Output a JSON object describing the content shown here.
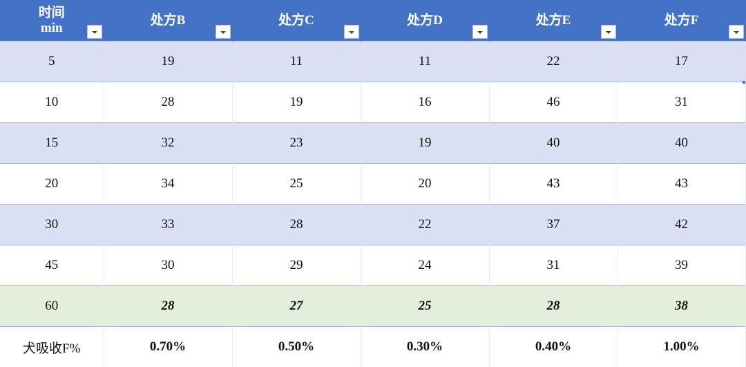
{
  "table": {
    "headers": [
      {
        "line1": "时间",
        "line2": "min"
      },
      {
        "line1": "处方B"
      },
      {
        "line1": "处方C"
      },
      {
        "line1": "处方D"
      },
      {
        "line1": "处方E"
      },
      {
        "line1": "处方F"
      }
    ],
    "rows": [
      [
        "5",
        "19",
        "11",
        "11",
        "22",
        "17"
      ],
      [
        "10",
        "28",
        "19",
        "16",
        "46",
        "31"
      ],
      [
        "15",
        "32",
        "23",
        "19",
        "40",
        "40"
      ],
      [
        "20",
        "34",
        "25",
        "20",
        "43",
        "43"
      ],
      [
        "30",
        "33",
        "28",
        "22",
        "37",
        "42"
      ],
      [
        "45",
        "30",
        "29",
        "24",
        "31",
        "39"
      ],
      [
        "60",
        "28",
        "27",
        "25",
        "28",
        "38"
      ]
    ],
    "summary": [
      "犬吸收F%",
      "0.70%",
      "0.50%",
      "0.30%",
      "0.40%",
      "1.00%"
    ]
  },
  "colors": {
    "header_bg": "#4472c4",
    "band_bg": "#d9e1f2",
    "highlight_row_bg": "#e2efda"
  }
}
